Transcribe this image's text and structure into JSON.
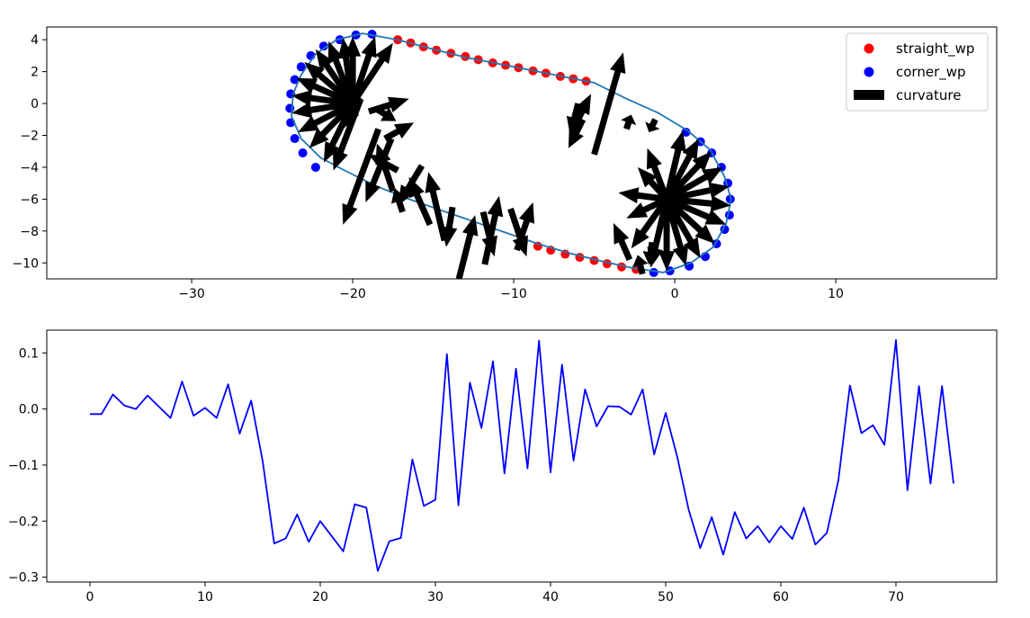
{
  "chart_data": [
    {
      "type": "scatter",
      "xlim": [
        -39,
        20
      ],
      "ylim": [
        -11,
        4.8
      ],
      "xticks": [
        -30,
        -20,
        -10,
        0,
        10
      ],
      "xtick_labels": [
        "−30",
        "−20",
        "−10",
        "0",
        "10"
      ],
      "yticks": [
        4,
        2,
        0,
        -2,
        -4,
        -6,
        -8,
        -10
      ],
      "ytick_labels": [
        "4",
        "2",
        "0",
        "−2",
        "−4",
        "−6",
        "−8",
        "−10"
      ],
      "grid": false,
      "legend_position": "top-right",
      "legend": [
        {
          "label": "straight_wp",
          "color": "#ff0000",
          "marker": "circle"
        },
        {
          "label": "corner_wp",
          "color": "#0000ff",
          "marker": "circle"
        },
        {
          "label": "curvature",
          "color": "#000000",
          "marker": "rectangle"
        }
      ],
      "path": {
        "color": "#1f77b4",
        "points": [
          [
            -19.4,
            4.4
          ],
          [
            -17.2,
            4.0
          ],
          [
            -15.0,
            3.4
          ],
          [
            -13.0,
            2.9
          ],
          [
            -11.0,
            2.5
          ],
          [
            -9.0,
            2.1
          ],
          [
            -7.0,
            1.7
          ],
          [
            -5.0,
            1.3
          ],
          [
            -3.0,
            0.3
          ],
          [
            -1.0,
            -0.6
          ],
          [
            0.8,
            -1.7
          ],
          [
            2.2,
            -2.9
          ],
          [
            3.1,
            -4.6
          ],
          [
            3.5,
            -6.0
          ],
          [
            3.2,
            -7.5
          ],
          [
            2.4,
            -9.0
          ],
          [
            1.0,
            -10.0
          ],
          [
            -0.7,
            -10.6
          ],
          [
            -2.7,
            -10.3
          ],
          [
            -4.5,
            -9.9
          ],
          [
            -6.5,
            -9.4
          ],
          [
            -8.5,
            -8.8
          ],
          [
            -10.5,
            -8.1
          ],
          [
            -12.5,
            -7.4
          ],
          [
            -14.5,
            -6.7
          ],
          [
            -16.5,
            -6.0
          ],
          [
            -18.5,
            -5.2
          ],
          [
            -20.5,
            -4.2
          ],
          [
            -22.0,
            -3.4
          ],
          [
            -23.2,
            -2.2
          ],
          [
            -23.8,
            -0.8
          ],
          [
            -23.7,
            0.6
          ],
          [
            -23.2,
            1.8
          ],
          [
            -22.3,
            3.1
          ],
          [
            -21.0,
            4.0
          ],
          [
            -19.4,
            4.4
          ]
        ]
      },
      "straight_wp": [
        [
          -17.2,
          4.0
        ],
        [
          -16.4,
          3.8
        ],
        [
          -15.6,
          3.55
        ],
        [
          -14.8,
          3.35
        ],
        [
          -13.9,
          3.15
        ],
        [
          -13.0,
          2.95
        ],
        [
          -12.2,
          2.75
        ],
        [
          -11.3,
          2.55
        ],
        [
          -10.5,
          2.4
        ],
        [
          -9.7,
          2.25
        ],
        [
          -8.8,
          2.05
        ],
        [
          -8.0,
          1.9
        ],
        [
          -7.1,
          1.7
        ],
        [
          -6.3,
          1.55
        ],
        [
          -5.5,
          1.4
        ],
        [
          -9.4,
          -8.7
        ],
        [
          -8.5,
          -8.95
        ],
        [
          -7.7,
          -9.2
        ],
        [
          -6.8,
          -9.45
        ],
        [
          -5.9,
          -9.65
        ],
        [
          -5.0,
          -9.85
        ],
        [
          -4.2,
          -10.05
        ],
        [
          -3.3,
          -10.25
        ],
        [
          -2.4,
          -10.4
        ]
      ],
      "corner_wp": [
        [
          -18.8,
          4.35
        ],
        [
          -19.8,
          4.3
        ],
        [
          -20.8,
          4.0
        ],
        [
          -21.8,
          3.6
        ],
        [
          -22.6,
          3.0
        ],
        [
          -23.2,
          2.3
        ],
        [
          -23.6,
          1.5
        ],
        [
          -23.85,
          0.6
        ],
        [
          -23.9,
          -0.3
        ],
        [
          -23.85,
          -1.2
        ],
        [
          -23.6,
          -2.2
        ],
        [
          -23.1,
          -3.1
        ],
        [
          -22.3,
          -4.0
        ],
        [
          0.7,
          -1.8
        ],
        [
          1.6,
          -2.4
        ],
        [
          2.3,
          -3.1
        ],
        [
          2.9,
          -4.0
        ],
        [
          3.3,
          -5.0
        ],
        [
          3.45,
          -6.0
        ],
        [
          3.4,
          -7.0
        ],
        [
          3.1,
          -7.9
        ],
        [
          2.6,
          -8.8
        ],
        [
          1.9,
          -9.6
        ],
        [
          0.9,
          -10.2
        ],
        [
          -0.3,
          -10.5
        ],
        [
          -1.3,
          -10.6
        ]
      ],
      "curvature_arrows": [
        [
          -20,
          0,
          -20,
          4.2
        ],
        [
          -20,
          0,
          -20.6,
          4.1
        ],
        [
          -20,
          0,
          -21.5,
          3.9
        ],
        [
          -20,
          0,
          -22.3,
          3.4
        ],
        [
          -20,
          0,
          -23.0,
          2.6
        ],
        [
          -20,
          0,
          -23.5,
          1.6
        ],
        [
          -20,
          0,
          -23.8,
          0.5
        ],
        [
          -20,
          0,
          -23.8,
          -0.6
        ],
        [
          -20,
          0,
          -23.4,
          -1.8
        ],
        [
          -20,
          0,
          -22.7,
          -2.8
        ],
        [
          -20,
          0,
          -21.8,
          -3.7
        ],
        [
          -20,
          0,
          -18.6,
          4.2
        ],
        [
          -20,
          0,
          -17.5,
          3.8
        ],
        [
          -19,
          -0.5,
          -16.5,
          0.3
        ],
        [
          -18.6,
          -0.3,
          -17.3,
          -1.1
        ],
        [
          -19.6,
          0.4,
          -20.6,
          -1.6
        ],
        [
          -19.5,
          0.3,
          -21.2,
          -4.2
        ],
        [
          -18.4,
          -1.6,
          -20.6,
          -7.6
        ],
        [
          -18.0,
          -2.2,
          -16.2,
          -1.2
        ],
        [
          -17.5,
          -5.5,
          -18.5,
          -2.5
        ],
        [
          -17.6,
          -2.2,
          -19.2,
          -6.2
        ],
        [
          -17.2,
          -4.2,
          -19.0,
          -3.2
        ],
        [
          -15.2,
          -7.6,
          -16.5,
          -4.6
        ],
        [
          -16.9,
          -6.8,
          -17.4,
          -5.3
        ],
        [
          -15.7,
          -3.9,
          -17.2,
          -6.4
        ],
        [
          -14.3,
          -8.6,
          -15.3,
          -4.3
        ],
        [
          -13.4,
          -11.0,
          -12.4,
          -7.0
        ],
        [
          -13.8,
          -6.5,
          -14.2,
          -9.0
        ],
        [
          -11.9,
          -6.8,
          -11.2,
          -9.6
        ],
        [
          -11.8,
          -10.1,
          -10.9,
          -5.8
        ],
        [
          -10.2,
          -6.6,
          -9.2,
          -9.6
        ],
        [
          -9.8,
          -9.2,
          -8.8,
          -6.2
        ],
        [
          -6.3,
          -1.6,
          -5.2,
          0.6
        ],
        [
          -5.7,
          -1.0,
          -6.6,
          -2.8
        ],
        [
          -6.0,
          0.0,
          -6.5,
          -2.0
        ],
        [
          -5.0,
          -3.2,
          -3.2,
          3.2
        ],
        [
          -3.0,
          -1.6,
          -2.7,
          -0.7
        ],
        [
          -1.2,
          -1.0,
          -1.6,
          -1.8
        ],
        [
          -2.8,
          -9.8,
          -3.8,
          -7.5
        ],
        [
          -2.0,
          -10.7,
          -2.3,
          -9.5
        ],
        [
          -1.4,
          -8.7,
          -1.6,
          -10.1
        ],
        [
          -0.5,
          -6.0,
          -0.5,
          -10.5
        ],
        [
          -0.5,
          -6.0,
          -1.5,
          -10.3
        ],
        [
          -0.5,
          -6.0,
          -2.7,
          -9.1
        ],
        [
          -0.5,
          -6.0,
          0.7,
          -10.2
        ],
        [
          -0.5,
          -6.0,
          1.6,
          -9.7
        ],
        [
          -0.5,
          -6.0,
          2.5,
          -8.8
        ],
        [
          -0.5,
          -6.0,
          3.2,
          -7.6
        ],
        [
          -0.5,
          -6.0,
          3.5,
          -6.4
        ],
        [
          -0.5,
          -6.0,
          3.4,
          -5.2
        ],
        [
          -0.5,
          -6.0,
          3.0,
          -4.0
        ],
        [
          -0.5,
          -6.0,
          2.3,
          -3.0
        ],
        [
          -0.5,
          -6.0,
          1.5,
          -2.2
        ],
        [
          -0.5,
          -6.0,
          0.5,
          -1.7
        ],
        [
          -0.5,
          -6.0,
          -1.7,
          -2.8
        ],
        [
          -0.5,
          -6.0,
          -2.3,
          -4.0
        ],
        [
          -0.5,
          -6.0,
          -3.5,
          -5.6
        ],
        [
          -0.5,
          -6.0,
          -3.0,
          -7.2
        ]
      ]
    },
    {
      "type": "line",
      "xlim": [
        -3.75,
        78.75
      ],
      "ylim": [
        -0.3087,
        0.1407
      ],
      "xticks": [
        0,
        10,
        20,
        30,
        40,
        50,
        60,
        70
      ],
      "xtick_labels": [
        "0",
        "10",
        "20",
        "30",
        "40",
        "50",
        "60",
        "70"
      ],
      "yticks": [
        0.1,
        0.0,
        -0.1,
        -0.2,
        -0.3
      ],
      "ytick_labels": [
        "0.1",
        "0.0",
        "−0.1",
        "−0.2",
        "−0.3"
      ],
      "grid": false,
      "series": [
        {
          "color": "#0000ff",
          "x": [
            0,
            1,
            2,
            3,
            4,
            5,
            6,
            7,
            8,
            9,
            10,
            11,
            12,
            13,
            14,
            15,
            16,
            17,
            18,
            19,
            20,
            21,
            22,
            23,
            24,
            25,
            26,
            27,
            28,
            29,
            30,
            31,
            32,
            33,
            34,
            35,
            36,
            37,
            38,
            39,
            40,
            41,
            42,
            43,
            44,
            45,
            46,
            47,
            48,
            49,
            50,
            51,
            52,
            53,
            54,
            55,
            56,
            57,
            58,
            59,
            60,
            61,
            62,
            63,
            64,
            65,
            66,
            67,
            68,
            69,
            70,
            71,
            72,
            73,
            74,
            75
          ],
          "values": [
            -0.009,
            -0.009,
            0.026,
            0.006,
            0.0,
            0.024,
            0.004,
            -0.016,
            0.049,
            -0.012,
            0.002,
            -0.016,
            0.044,
            -0.044,
            0.015,
            -0.093,
            -0.24,
            -0.231,
            -0.188,
            -0.237,
            -0.2,
            -0.227,
            -0.254,
            -0.17,
            -0.176,
            -0.289,
            -0.236,
            -0.23,
            -0.09,
            -0.173,
            -0.162,
            0.098,
            -0.172,
            0.047,
            -0.034,
            0.085,
            -0.115,
            0.072,
            -0.106,
            0.122,
            -0.113,
            0.079,
            -0.092,
            0.035,
            -0.031,
            0.005,
            0.004,
            -0.01,
            0.035,
            -0.081,
            -0.007,
            -0.085,
            -0.18,
            -0.248,
            -0.193,
            -0.26,
            -0.184,
            -0.231,
            -0.209,
            -0.238,
            -0.209,
            -0.232,
            -0.176,
            -0.242,
            -0.221,
            -0.127,
            0.042,
            -0.043,
            -0.029,
            -0.064,
            0.123,
            -0.145,
            0.041,
            -0.133,
            0.041,
            -0.133
          ]
        }
      ]
    }
  ]
}
